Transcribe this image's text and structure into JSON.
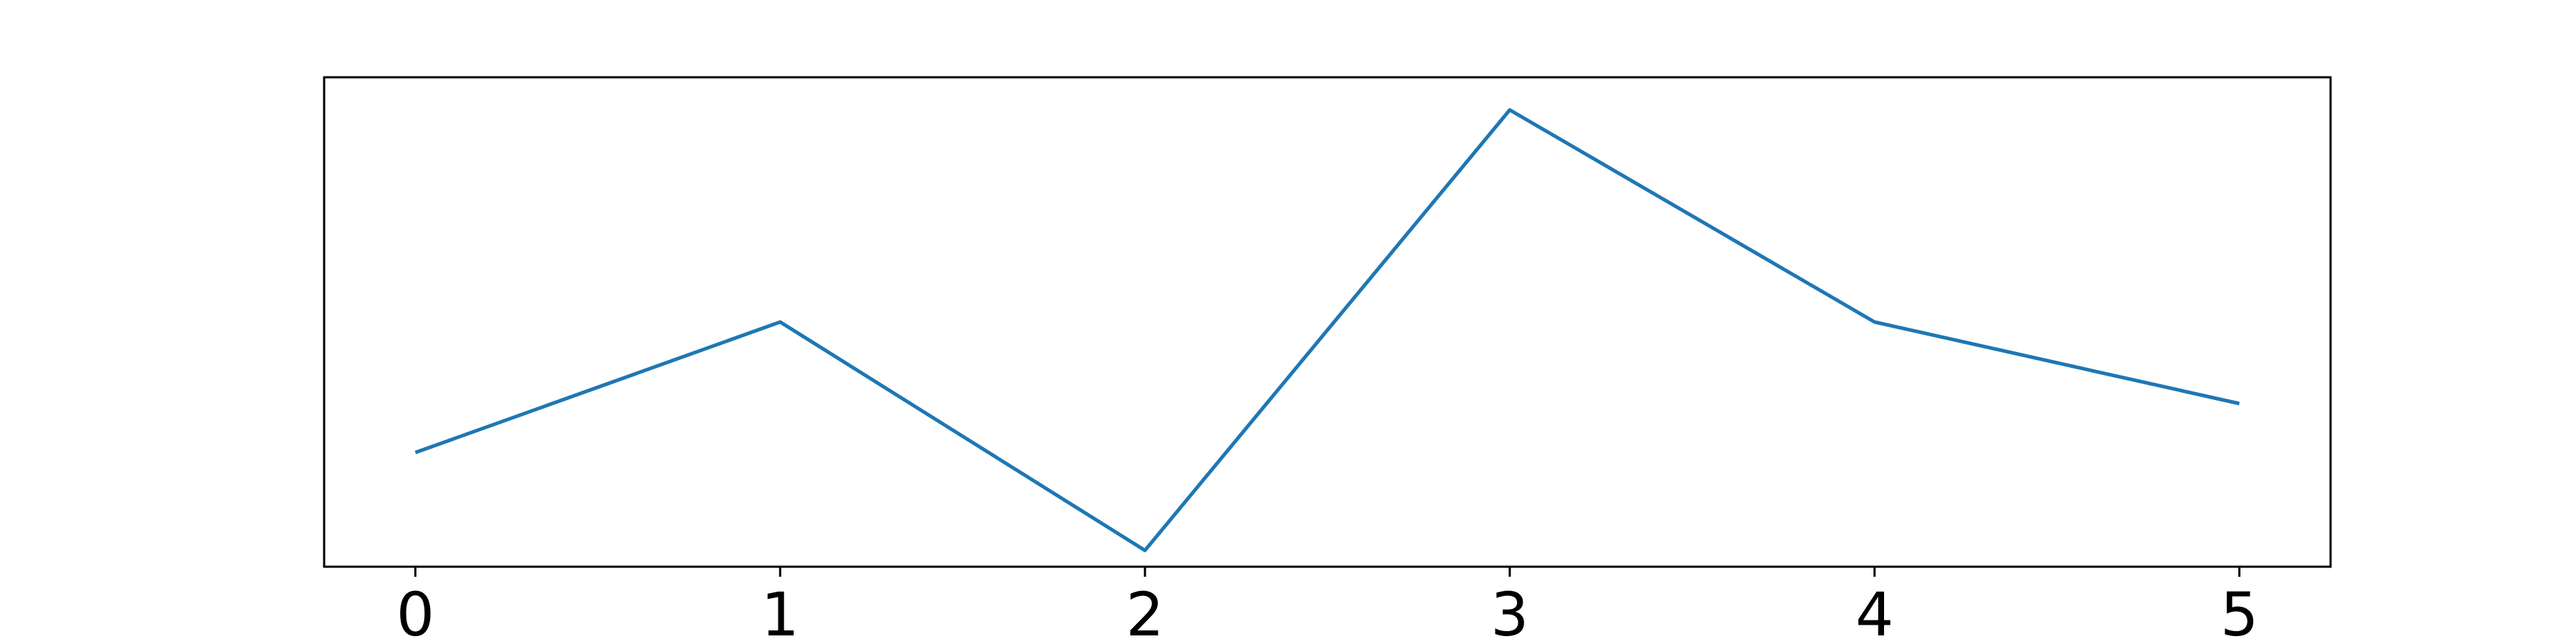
{
  "chart_data": {
    "type": "line",
    "x": [
      0,
      1,
      2,
      3,
      4,
      5
    ],
    "series": [
      {
        "values": [
          0.57,
          0.65,
          0.51,
          0.78,
          0.65,
          0.6
        ]
      }
    ],
    "xticks": [
      "0",
      "1",
      "2",
      "3",
      "4",
      "5"
    ],
    "xlim": [
      -0.25,
      5.25
    ],
    "ylim": [
      0.5,
      0.8
    ],
    "grid": false,
    "line_color": "#1f77b4",
    "axes_color": "#000000"
  }
}
